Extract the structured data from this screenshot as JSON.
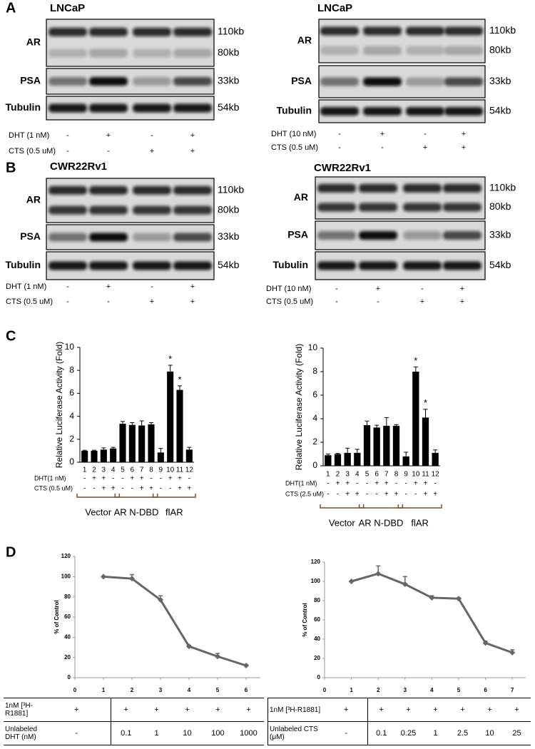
{
  "panel_labels": [
    "A",
    "B",
    "C",
    "D"
  ],
  "blots": [
    {
      "title": "LNCaP",
      "rows": [
        {
          "name": "AR",
          "sizes": [
            "110kb",
            "80kb"
          ]
        },
        {
          "name": "PSA",
          "sizes": [
            "33kb"
          ]
        },
        {
          "name": "Tubulin",
          "sizes": [
            "54kb"
          ]
        }
      ],
      "treatments": [
        {
          "label": "DHT (1 nM)",
          "marks": [
            "-",
            "+",
            "-",
            "+"
          ]
        },
        {
          "label": "CTS (0.5 uM)",
          "marks": [
            "-",
            "-",
            "+",
            "+"
          ]
        }
      ]
    },
    {
      "title": "LNCaP",
      "rows": [
        {
          "name": "AR",
          "sizes": [
            "110kb",
            "80kb"
          ]
        },
        {
          "name": "PSA",
          "sizes": [
            "33kb"
          ]
        },
        {
          "name": "Tubulin",
          "sizes": [
            "54kb"
          ]
        }
      ],
      "treatments": [
        {
          "label": "DHT (10 nM)",
          "marks": [
            "-",
            "+",
            "-",
            "+"
          ]
        },
        {
          "label": "CTS (0.5 uM)",
          "marks": [
            "-",
            "-",
            "+",
            "+"
          ]
        }
      ]
    },
    {
      "title": "CWR22Rv1",
      "rows": [
        {
          "name": "AR",
          "sizes": [
            "110kb",
            "80kb"
          ]
        },
        {
          "name": "PSA",
          "sizes": [
            "33kb"
          ]
        },
        {
          "name": "Tubulin",
          "sizes": [
            "54kb"
          ]
        }
      ],
      "treatments": [
        {
          "label": "DHT (1 nM)",
          "marks": [
            "-",
            "+",
            "-",
            "+"
          ]
        },
        {
          "label": "CTS (0.5 uM)",
          "marks": [
            "-",
            "-",
            "+",
            "+"
          ]
        }
      ]
    },
    {
      "title": "CWR22Rv1",
      "rows": [
        {
          "name": "AR",
          "sizes": [
            "110kb",
            "80kb"
          ]
        },
        {
          "name": "PSA",
          "sizes": [
            "33kb"
          ]
        },
        {
          "name": "Tubulin",
          "sizes": [
            "54kb"
          ]
        }
      ],
      "treatments": [
        {
          "label": "DHT (10 nM)",
          "marks": [
            "-",
            "+",
            "-",
            "+"
          ]
        },
        {
          "label": "CTS (0.5 uM)",
          "marks": [
            "-",
            "-",
            "+",
            "+"
          ]
        }
      ]
    }
  ],
  "chart_data": [
    {
      "type": "bar",
      "y_label": "Relative Luciferase Activity (Fold)",
      "categories": [
        "1",
        "2",
        "3",
        "4",
        "5",
        "6",
        "7",
        "8",
        "9",
        "10",
        "11",
        "12"
      ],
      "values": [
        1.0,
        1.0,
        1.1,
        1.2,
        3.35,
        3.25,
        3.2,
        3.3,
        0.85,
        7.9,
        6.3,
        1.1
      ],
      "errors": [
        0.05,
        0.05,
        0.15,
        0.1,
        0.2,
        0.2,
        0.4,
        0.15,
        0.35,
        0.55,
        0.35,
        0.2
      ],
      "annotations": [
        null,
        null,
        null,
        null,
        null,
        null,
        null,
        null,
        null,
        "*",
        "*",
        null
      ],
      "color": "#000000",
      "ylim": [
        0,
        10
      ],
      "yticks": [
        0,
        2,
        4,
        6,
        8,
        10
      ],
      "treatments": [
        {
          "label": "DHT(1 nM)",
          "marks": [
            "-",
            "+",
            "+",
            "-",
            "-",
            "+",
            "+",
            "-",
            "-",
            "+",
            "+",
            "-"
          ]
        },
        {
          "label": "CTS (0.5 uM)",
          "marks": [
            "-",
            "-",
            "+",
            "+",
            "-",
            "-",
            "+",
            "+",
            "-",
            "-",
            "+",
            "+"
          ]
        }
      ],
      "groups": [
        "Vector",
        "AR N-DBD",
        "flAR"
      ]
    },
    {
      "type": "bar",
      "y_label": "Relative Luciferase Activity (Fold)",
      "categories": [
        "1",
        "2",
        "3",
        "4",
        "5",
        "6",
        "7",
        "8",
        "9",
        "10",
        "11",
        "12"
      ],
      "values": [
        0.9,
        1.0,
        1.1,
        1.1,
        3.45,
        3.25,
        3.4,
        3.4,
        0.8,
        8.0,
        4.1,
        1.1
      ],
      "errors": [
        0.1,
        0.05,
        0.4,
        0.3,
        0.35,
        0.2,
        0.7,
        0.1,
        0.35,
        0.4,
        0.7,
        0.25
      ],
      "annotations": [
        null,
        null,
        null,
        null,
        null,
        null,
        null,
        null,
        null,
        "*",
        "*",
        null
      ],
      "color": "#000000",
      "ylim": [
        0,
        10
      ],
      "yticks": [
        0,
        2,
        4,
        6,
        8,
        10
      ],
      "treatments": [
        {
          "label": "DHT(1 nM)",
          "marks": [
            "-",
            "+",
            "+",
            "-",
            "-",
            "+",
            "+",
            "-",
            "-",
            "+",
            "+",
            "-"
          ]
        },
        {
          "label": "CTS (2.5 uM)",
          "marks": [
            "-",
            "-",
            "+",
            "+",
            "-",
            "-",
            "+",
            "+",
            "-",
            "-",
            "+",
            "+"
          ]
        }
      ],
      "groups": [
        "Vector",
        "AR N-DBD",
        "flAR"
      ]
    },
    {
      "type": "line",
      "y_label": "% of Control",
      "x": [
        1,
        2,
        3,
        4,
        5,
        6
      ],
      "values": [
        100,
        98,
        77,
        31,
        21,
        12
      ],
      "errors": [
        0,
        4,
        4,
        1,
        3,
        1
      ],
      "color": "#666666",
      "xlim": [
        0,
        6.5
      ],
      "xticks": [
        0,
        1,
        2,
        3,
        4,
        5,
        6
      ],
      "ylim": [
        0,
        120
      ],
      "yticks": [
        0,
        20,
        40,
        60,
        80,
        100,
        120
      ]
    },
    {
      "type": "line",
      "y_label": "% of Control",
      "x": [
        1,
        2,
        3,
        4,
        5,
        6,
        7
      ],
      "values": [
        100,
        108,
        97,
        83,
        82,
        36,
        26
      ],
      "errors": [
        0,
        8,
        8,
        2,
        1,
        2,
        3
      ],
      "color": "#666666",
      "xlim": [
        0,
        7.5
      ],
      "xticks": [
        0,
        1,
        2,
        3,
        4,
        5,
        6,
        7
      ],
      "ylim": [
        0,
        120
      ],
      "yticks": [
        0,
        20,
        40,
        60,
        80,
        100,
        120
      ]
    }
  ],
  "tables": [
    {
      "rows": [
        [
          "1nM [³H-R1881]",
          "+",
          "+",
          "+",
          "+",
          "+",
          "+"
        ],
        [
          "Unlabeled DHT (nM)",
          "-",
          "0.1",
          "1",
          "10",
          "100",
          "1000"
        ]
      ]
    },
    {
      "rows": [
        [
          "1nM [³H-R1881]",
          "+",
          "+",
          "+",
          "+",
          "+",
          "+",
          "+"
        ],
        [
          "Unlabeled CTS (μM)",
          "-",
          "0.1",
          "0.25",
          "1",
          "2.5",
          "10",
          "25"
        ]
      ]
    }
  ]
}
